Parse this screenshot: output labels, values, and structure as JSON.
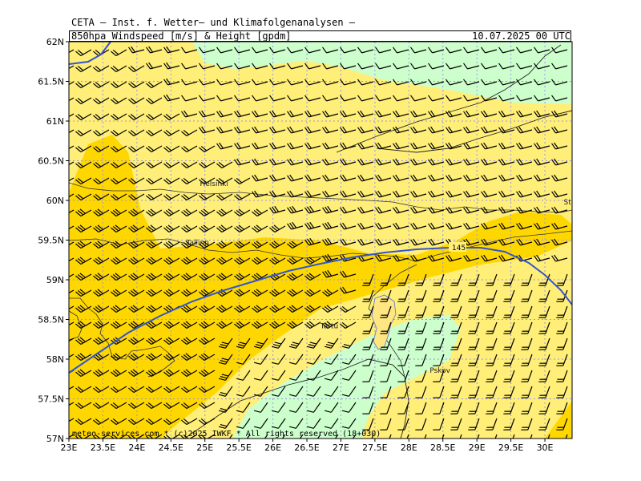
{
  "header": {
    "title": "CETA – Inst. f. Wetter– und Klimafolgenanalysen –",
    "subtitle": "850hpa Windspeed [m/s] & Height [gpdm]",
    "valid_time": "10.07.2025 00 UTC"
  },
  "footer": {
    "copyright": "meteo-services.com * (c)2025 IWKF * All rights reserved (18+030)"
  },
  "map": {
    "region": "Gulf of Finland / Estonia",
    "lon_range": [
      23,
      30.4
    ],
    "lat_range": [
      57,
      62
    ],
    "y_ticks": [
      "57N",
      "57.5N",
      "58N",
      "58.5N",
      "59N",
      "59.5N",
      "60N",
      "60.5N",
      "61N",
      "61.5N",
      "62N"
    ],
    "x_ticks": [
      "23E",
      "23.5E",
      "24E",
      "24.5E",
      "25E",
      "25.5E",
      "26E",
      "26.5E",
      "27E",
      "27.5E",
      "28E",
      "28.5E",
      "29E",
      "29.5E",
      "30E"
    ],
    "cities": [
      {
        "name": "Helsinki",
        "lon": 24.95,
        "lat": 60.17
      },
      {
        "name": "Tallinn",
        "lon": 24.75,
        "lat": 59.43
      },
      {
        "name": "Tartu",
        "lon": 26.72,
        "lat": 58.38
      },
      {
        "name": "Pskov",
        "lon": 28.33,
        "lat": 57.82
      },
      {
        "name": "St.Pbsbg.",
        "lon": 30.3,
        "lat": 59.94
      }
    ],
    "contour_label": "145",
    "colors": {
      "wind_5_10": "#ccffcc",
      "wind_10_15": "#ffee77",
      "wind_15_20": "#ffd700",
      "height_contour": "#3355cc",
      "grid": "#9999dd",
      "coast": "#333333"
    }
  }
}
